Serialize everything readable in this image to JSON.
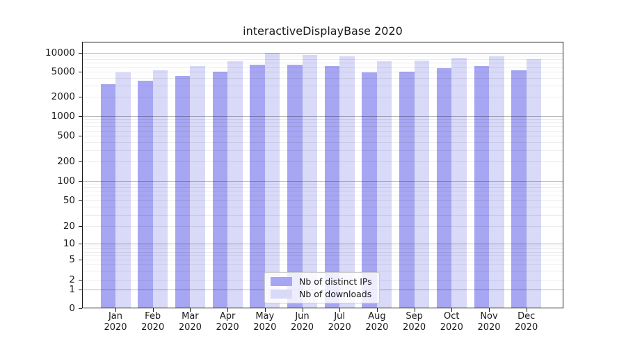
{
  "title": "interactiveDisplayBase 2020",
  "colors": {
    "bar_distinct_ips": "#a6a6f2",
    "bar_downloads": "#d9d9f8",
    "grid_major": "#b5b5b5",
    "grid_minor": "#e8e8e8",
    "axis": "#1a1a1a",
    "background": "#ffffff"
  },
  "chart_data": {
    "type": "bar",
    "title": "interactiveDisplayBase 2020",
    "categories": [
      "Jan",
      "Feb",
      "Mar",
      "Apr",
      "May",
      "Jun",
      "Jul",
      "Aug",
      "Sep",
      "Oct",
      "Nov",
      "Dec"
    ],
    "category_year": "2020",
    "series": [
      {
        "name": "Nb of distinct IPs",
        "color": "#a6a6f2",
        "values": [
          3200,
          3600,
          4300,
          5000,
          6400,
          6500,
          6100,
          4900,
          5000,
          5700,
          6100,
          5300
        ]
      },
      {
        "name": "Nb of downloads",
        "color": "#d9d9f8",
        "values": [
          4900,
          5300,
          6200,
          7400,
          9900,
          9200,
          8800,
          7300,
          7600,
          8400,
          8700,
          8000
        ]
      }
    ],
    "xlabel": "",
    "ylabel": "",
    "yscale": "symlog",
    "ylim": [
      0,
      13000
    ],
    "y_ticks": [
      0,
      1,
      2,
      5,
      10,
      20,
      50,
      100,
      200,
      500,
      1000,
      2000,
      5000,
      10000
    ],
    "y_tick_labels": [
      "0",
      "1",
      "2",
      "5",
      "10",
      "20",
      "50",
      "100",
      "200",
      "500",
      "1000",
      "2000",
      "5000",
      "10000"
    ],
    "grid": "horizontal log major+minor",
    "legend_position": "lower center inside"
  }
}
